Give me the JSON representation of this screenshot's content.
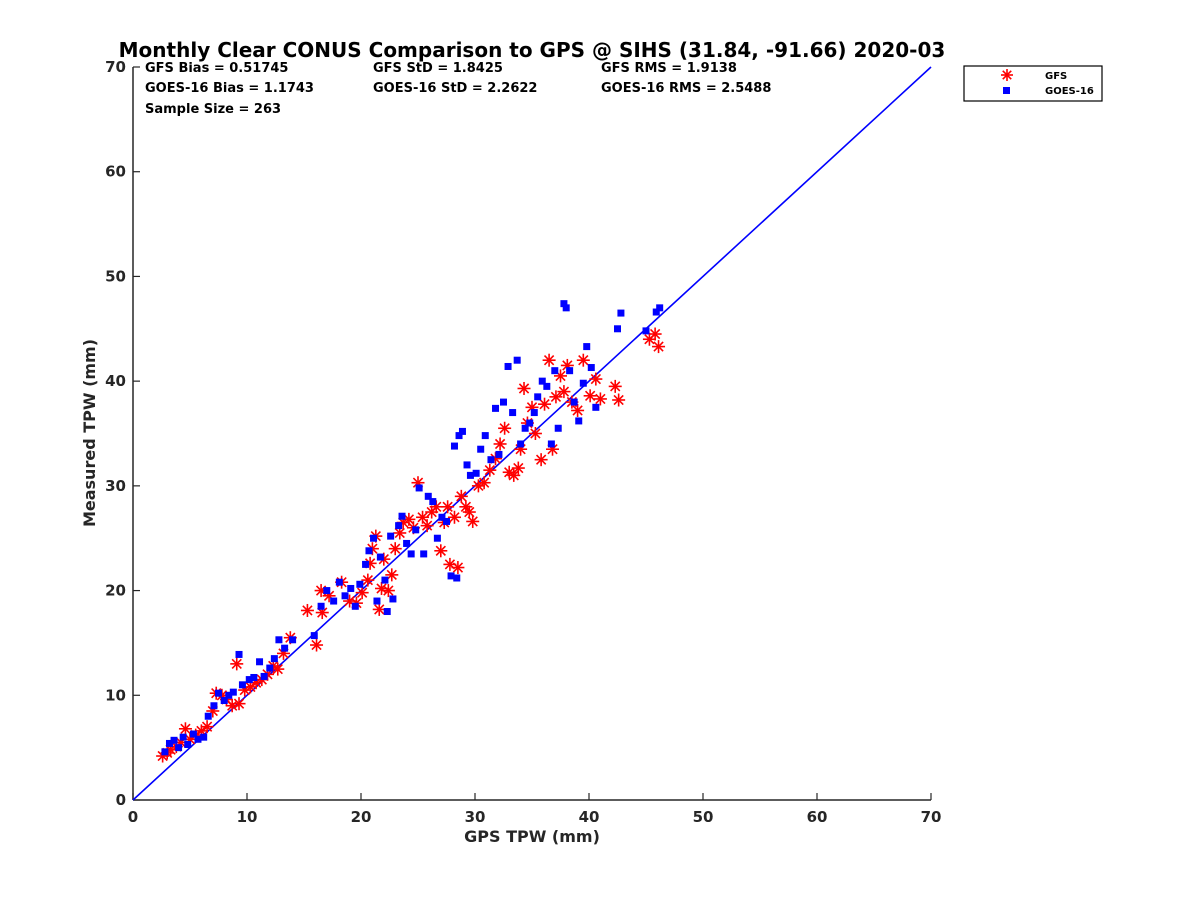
{
  "chart_data": {
    "type": "scatter",
    "title": "Monthly Clear CONUS Comparison to GPS @ SIHS (31.84, -91.66) 2020-03",
    "xlabel": "GPS TPW (mm)",
    "ylabel": "Measured TPW (mm)",
    "xlim": [
      0,
      70
    ],
    "ylim": [
      0,
      70
    ],
    "xticks": [
      "0",
      "10",
      "20",
      "30",
      "40",
      "50",
      "60",
      "70"
    ],
    "yticks": [
      "0",
      "10",
      "20",
      "30",
      "40",
      "50",
      "60",
      "70"
    ],
    "grid": false,
    "legend_position": "outside-top-right",
    "stats": {
      "gfs_bias": "GFS Bias = 0.51745",
      "gfs_std": "GFS StD = 1.8425",
      "gfs_rms": "GFS RMS = 1.9138",
      "goes_bias": "GOES-16 Bias = 1.1743",
      "goes_std": "GOES-16 StD = 2.2622",
      "goes_rms": "GOES-16 RMS = 2.5488",
      "sample_size": "Sample Size = 263"
    },
    "reference_line": {
      "name": "1:1 line",
      "x": [
        0,
        70
      ],
      "y": [
        0,
        70
      ],
      "color": "#0000ff"
    },
    "series": [
      {
        "name": "GFS",
        "marker": "asterisk",
        "color": "#ff0000",
        "points": [
          [
            2.6,
            4.2
          ],
          [
            3.0,
            4.5
          ],
          [
            3.3,
            4.8
          ],
          [
            3.8,
            5.1
          ],
          [
            4.2,
            5.5
          ],
          [
            4.6,
            6.8
          ],
          [
            5.0,
            5.8
          ],
          [
            5.5,
            6.2
          ],
          [
            6.0,
            6.6
          ],
          [
            6.5,
            7.0
          ],
          [
            7.0,
            8.5
          ],
          [
            7.3,
            10.2
          ],
          [
            7.8,
            10.0
          ],
          [
            8.2,
            9.6
          ],
          [
            8.7,
            9.0
          ],
          [
            9.1,
            13.0
          ],
          [
            9.3,
            9.2
          ],
          [
            9.8,
            10.5
          ],
          [
            10.3,
            10.8
          ],
          [
            10.8,
            11.2
          ],
          [
            11.3,
            11.5
          ],
          [
            11.8,
            12.0
          ],
          [
            12.3,
            12.8
          ],
          [
            12.7,
            12.5
          ],
          [
            13.2,
            14.0
          ],
          [
            13.8,
            15.5
          ],
          [
            15.3,
            18.1
          ],
          [
            16.1,
            14.8
          ],
          [
            16.6,
            17.9
          ],
          [
            16.5,
            20.0
          ],
          [
            17.2,
            19.5
          ],
          [
            18.3,
            20.8
          ],
          [
            19.0,
            19.0
          ],
          [
            19.6,
            18.8
          ],
          [
            20.1,
            19.8
          ],
          [
            20.6,
            21.0
          ],
          [
            20.8,
            22.6
          ],
          [
            21.0,
            24.0
          ],
          [
            21.3,
            25.2
          ],
          [
            21.6,
            18.2
          ],
          [
            21.8,
            20.2
          ],
          [
            22.0,
            23.0
          ],
          [
            22.4,
            20.0
          ],
          [
            22.7,
            21.5
          ],
          [
            23.0,
            24.0
          ],
          [
            23.4,
            25.5
          ],
          [
            23.7,
            26.5
          ],
          [
            24.2,
            26.8
          ],
          [
            24.6,
            26.0
          ],
          [
            25.0,
            30.3
          ],
          [
            25.4,
            27.0
          ],
          [
            25.8,
            26.2
          ],
          [
            26.2,
            27.5
          ],
          [
            26.6,
            28.0
          ],
          [
            27.0,
            23.8
          ],
          [
            27.3,
            26.5
          ],
          [
            27.6,
            28.0
          ],
          [
            27.8,
            22.5
          ],
          [
            28.2,
            27.0
          ],
          [
            28.5,
            22.2
          ],
          [
            28.8,
            29.0
          ],
          [
            29.2,
            28.0
          ],
          [
            29.5,
            27.5
          ],
          [
            29.8,
            26.6
          ],
          [
            30.3,
            30.0
          ],
          [
            30.8,
            30.3
          ],
          [
            31.3,
            31.5
          ],
          [
            31.8,
            32.6
          ],
          [
            32.2,
            34.0
          ],
          [
            32.6,
            35.5
          ],
          [
            33.0,
            31.3
          ],
          [
            33.4,
            31.0
          ],
          [
            33.8,
            31.7
          ],
          [
            34.0,
            33.5
          ],
          [
            34.3,
            39.3
          ],
          [
            34.6,
            36.0
          ],
          [
            35.0,
            37.5
          ],
          [
            35.3,
            35.0
          ],
          [
            35.8,
            32.5
          ],
          [
            36.1,
            37.8
          ],
          [
            36.5,
            42.0
          ],
          [
            36.8,
            33.5
          ],
          [
            37.1,
            38.5
          ],
          [
            37.5,
            40.5
          ],
          [
            37.8,
            39.0
          ],
          [
            38.1,
            41.5
          ],
          [
            38.5,
            38.0
          ],
          [
            39.0,
            37.2
          ],
          [
            39.5,
            42.0
          ],
          [
            40.1,
            38.6
          ],
          [
            40.6,
            40.2
          ],
          [
            41.0,
            38.3
          ],
          [
            42.3,
            39.5
          ],
          [
            42.6,
            38.2
          ],
          [
            45.3,
            44.0
          ],
          [
            45.8,
            44.5
          ],
          [
            46.1,
            43.3
          ]
        ]
      },
      {
        "name": "GOES-16",
        "marker": "square",
        "color": "#0000ff",
        "points": [
          [
            2.8,
            4.6
          ],
          [
            3.2,
            5.4
          ],
          [
            3.6,
            5.7
          ],
          [
            4.0,
            5.0
          ],
          [
            4.4,
            6.0
          ],
          [
            4.8,
            5.3
          ],
          [
            5.3,
            6.3
          ],
          [
            5.7,
            5.8
          ],
          [
            6.2,
            6.0
          ],
          [
            6.6,
            8.0
          ],
          [
            7.1,
            9.0
          ],
          [
            7.5,
            10.2
          ],
          [
            8.0,
            9.5
          ],
          [
            8.4,
            10.0
          ],
          [
            8.8,
            10.3
          ],
          [
            9.3,
            13.9
          ],
          [
            9.6,
            11.0
          ],
          [
            10.2,
            11.5
          ],
          [
            10.6,
            11.7
          ],
          [
            11.1,
            13.2
          ],
          [
            11.5,
            11.8
          ],
          [
            12.0,
            12.6
          ],
          [
            12.4,
            13.5
          ],
          [
            12.8,
            15.3
          ],
          [
            13.3,
            14.5
          ],
          [
            14.0,
            15.3
          ],
          [
            15.9,
            15.7
          ],
          [
            16.5,
            18.5
          ],
          [
            17.0,
            20.0
          ],
          [
            17.6,
            19.0
          ],
          [
            18.1,
            20.8
          ],
          [
            18.6,
            19.5
          ],
          [
            19.1,
            20.2
          ],
          [
            19.5,
            18.5
          ],
          [
            19.9,
            20.6
          ],
          [
            20.4,
            22.5
          ],
          [
            20.7,
            23.8
          ],
          [
            21.1,
            25.0
          ],
          [
            21.4,
            19.0
          ],
          [
            21.7,
            23.2
          ],
          [
            22.1,
            21.0
          ],
          [
            22.3,
            18.0
          ],
          [
            22.6,
            25.2
          ],
          [
            22.8,
            19.2
          ],
          [
            23.3,
            26.2
          ],
          [
            23.6,
            27.1
          ],
          [
            24.0,
            24.5
          ],
          [
            24.4,
            23.5
          ],
          [
            24.8,
            25.8
          ],
          [
            25.1,
            29.8
          ],
          [
            25.5,
            23.5
          ],
          [
            25.9,
            29.0
          ],
          [
            26.3,
            28.5
          ],
          [
            26.7,
            25.0
          ],
          [
            27.1,
            27.0
          ],
          [
            27.5,
            26.6
          ],
          [
            27.9,
            21.4
          ],
          [
            28.2,
            33.8
          ],
          [
            28.4,
            21.2
          ],
          [
            28.6,
            34.8
          ],
          [
            28.9,
            35.2
          ],
          [
            29.3,
            32.0
          ],
          [
            29.6,
            31.0
          ],
          [
            30.1,
            31.2
          ],
          [
            30.5,
            33.5
          ],
          [
            30.9,
            34.8
          ],
          [
            31.4,
            32.5
          ],
          [
            31.8,
            37.4
          ],
          [
            32.1,
            33.0
          ],
          [
            32.5,
            38.0
          ],
          [
            32.9,
            41.4
          ],
          [
            33.3,
            37.0
          ],
          [
            33.7,
            42.0
          ],
          [
            34.0,
            34.0
          ],
          [
            34.4,
            35.5
          ],
          [
            34.8,
            36.0
          ],
          [
            35.2,
            37.0
          ],
          [
            35.5,
            38.5
          ],
          [
            35.9,
            40.0
          ],
          [
            36.3,
            39.5
          ],
          [
            36.7,
            34.0
          ],
          [
            37.0,
            41.0
          ],
          [
            37.3,
            35.5
          ],
          [
            37.8,
            47.4
          ],
          [
            38.0,
            47.0
          ],
          [
            38.3,
            41.0
          ],
          [
            38.7,
            38.0
          ],
          [
            39.1,
            36.2
          ],
          [
            39.5,
            39.8
          ],
          [
            39.8,
            43.3
          ],
          [
            40.2,
            41.3
          ],
          [
            40.6,
            37.5
          ],
          [
            42.5,
            45.0
          ],
          [
            42.8,
            46.5
          ],
          [
            45.0,
            44.8
          ],
          [
            45.9,
            46.6
          ],
          [
            46.2,
            47.0
          ]
        ]
      }
    ]
  }
}
